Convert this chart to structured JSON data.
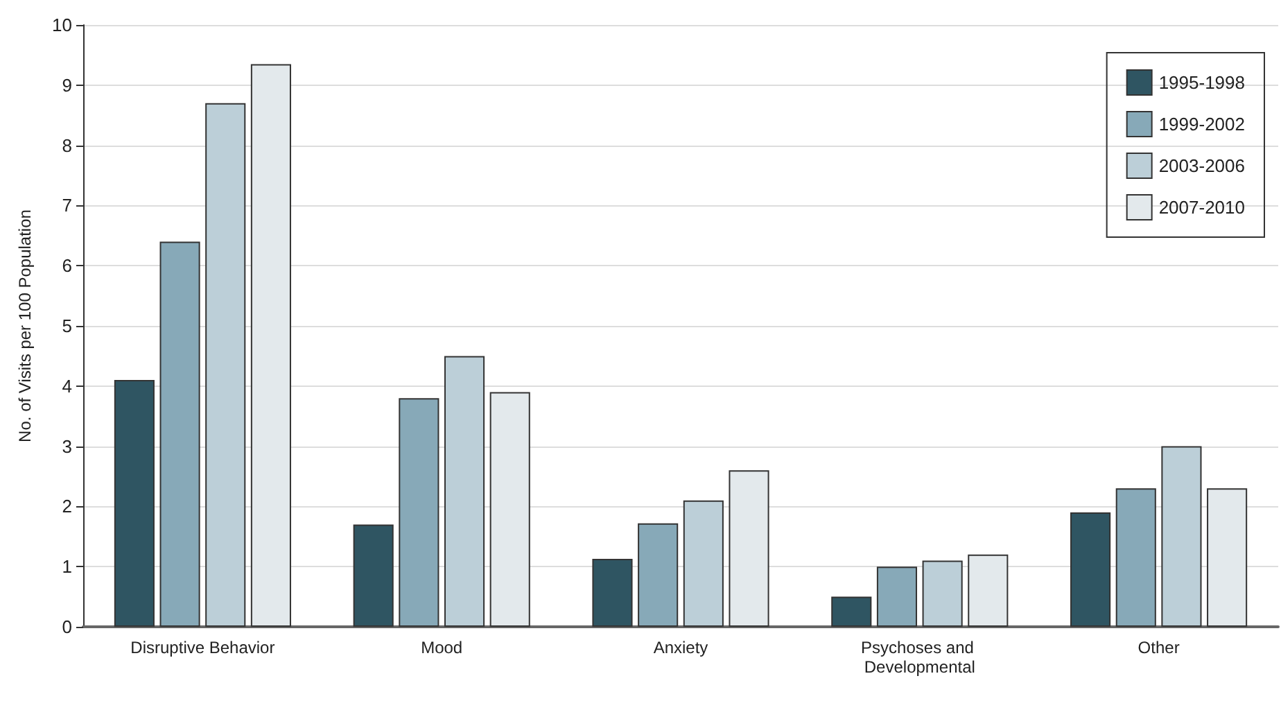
{
  "chart_data": {
    "type": "bar",
    "ylabel": "No. of Visits per 100 Population",
    "categories": [
      "Disruptive Behavior",
      "Mood",
      "Anxiety",
      "Psychoses and Developmental",
      "Other"
    ],
    "series": [
      {
        "name": "1995-1998",
        "color": "#2f5562",
        "values": [
          4.1,
          1.7,
          1.13,
          0.5,
          1.9
        ]
      },
      {
        "name": "1999-2002",
        "color": "#87a9b8",
        "values": [
          6.4,
          3.8,
          1.72,
          1.0,
          2.3
        ]
      },
      {
        "name": "2003-2006",
        "color": "#bccfd8",
        "values": [
          8.7,
          4.5,
          2.1,
          1.1,
          3.0
        ]
      },
      {
        "name": "2007-2010",
        "color": "#e3e9ec",
        "values": [
          9.35,
          3.9,
          2.6,
          1.2,
          2.3
        ]
      }
    ],
    "ylim": [
      0,
      10
    ],
    "yticks": [
      0,
      1,
      2,
      3,
      4,
      5,
      6,
      7,
      8,
      9,
      10
    ],
    "grid": "y",
    "legend": "top right"
  }
}
